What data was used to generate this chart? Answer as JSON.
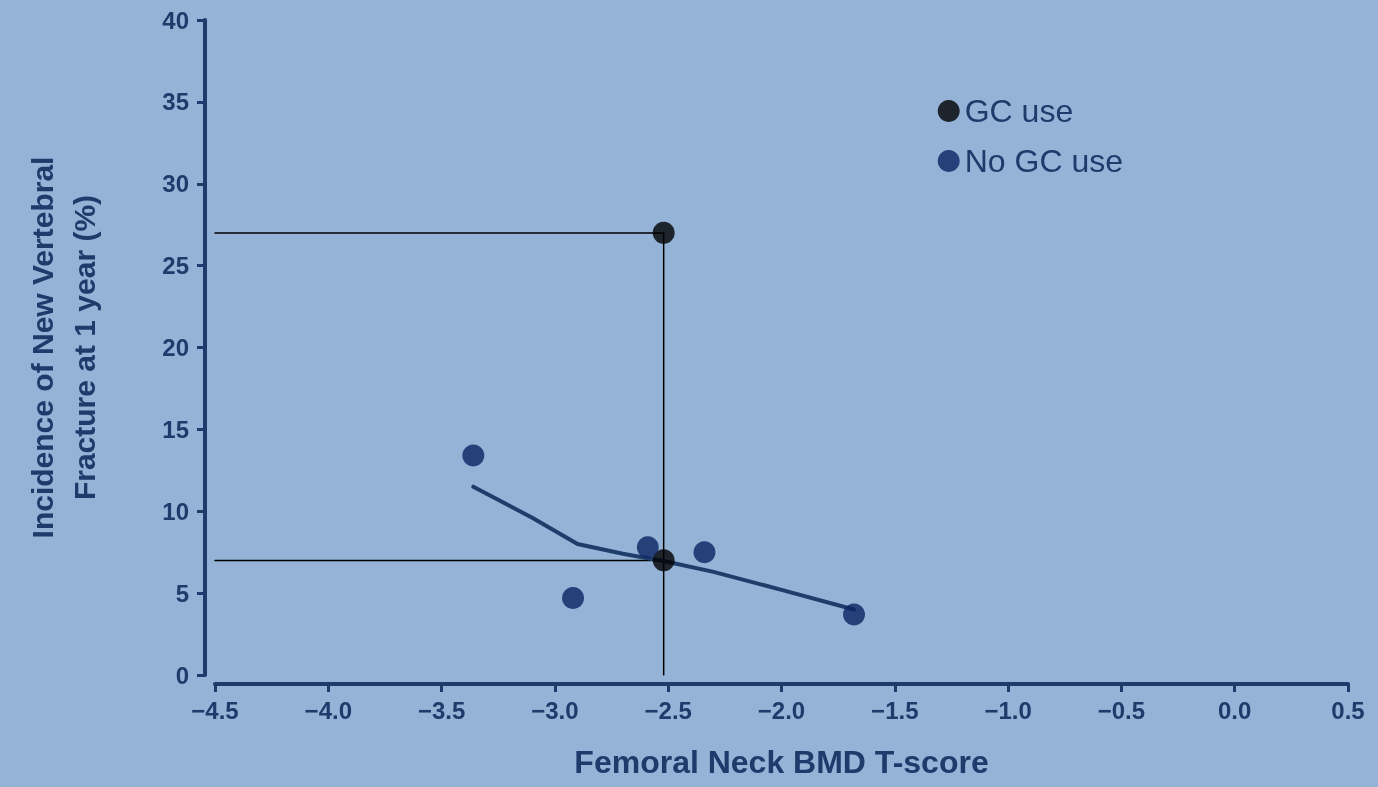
{
  "chart_data": {
    "type": "scatter",
    "xlabel": "Femoral Neck BMD T-score",
    "ylabel": "Incidence of New Vertebral Fracture at 1 year (%)",
    "xlim": [
      -4.5,
      0.5
    ],
    "xticks": [
      {
        "value": -4.5,
        "label": "−4.5"
      },
      {
        "value": -4.0,
        "label": "−4.0"
      },
      {
        "value": -3.5,
        "label": "−3.5"
      },
      {
        "value": -3.0,
        "label": "−3.0"
      },
      {
        "value": -2.5,
        "label": "−2.5"
      },
      {
        "value": -2.0,
        "label": "−2.0"
      },
      {
        "value": -1.5,
        "label": "−1.5"
      },
      {
        "value": -1.0,
        "label": "−1.0"
      },
      {
        "value": -0.5,
        "label": "−0.5"
      },
      {
        "value": 0,
        "label": "0.0"
      },
      {
        "value": 0.5,
        "label": "0.5"
      }
    ],
    "ylim": [
      0,
      40
    ],
    "yticks": [
      0,
      5,
      10,
      15,
      20,
      25,
      30,
      35,
      40
    ],
    "series": [
      {
        "name": "GC use",
        "color": "#000000",
        "x": [
          -2.52,
          -2.52
        ],
        "values": [
          27,
          7
        ]
      },
      {
        "name": "No GC use",
        "color": "#0a2463",
        "x": [
          -3.36,
          -2.92,
          -2.59,
          -2.34,
          -1.68
        ],
        "values": [
          13.4,
          4.7,
          7.8,
          7.5,
          3.7
        ]
      },
      {
        "type": "line",
        "color": "#1f3d6b",
        "x": [
          -3.36,
          -3.1,
          -2.9,
          -2.7,
          -2.5,
          -2.3,
          -2.0,
          -1.68
        ],
        "values": [
          11.5,
          9.6,
          8.0,
          7.4,
          6.9,
          6.3,
          5.2,
          4.0
        ]
      },
      {
        "type": "line",
        "color": "#000000",
        "x": [
          -4.5,
          -2.52,
          -2.52
        ],
        "values": [
          27,
          27,
          0
        ]
      },
      {
        "type": "line",
        "color": "#000000",
        "x": [
          -4.5,
          -2.52
        ],
        "values": [
          7,
          7
        ]
      }
    ],
    "legend": "top right",
    "grid": false
  }
}
